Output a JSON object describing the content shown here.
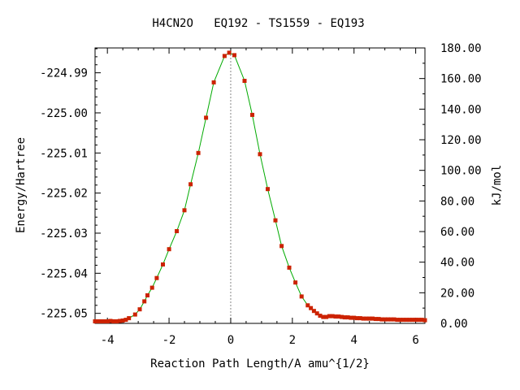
{
  "chart_data": {
    "type": "line",
    "title": "H4CN2O   EQ192 - TS1559 - EQ193",
    "xlabel": "Reaction Path Length/A amu^{1/2}",
    "ylabel": "Energy/Hartree",
    "y2label": "kJ/mol",
    "xlim": [
      -4.4,
      6.3
    ],
    "ylim": [
      -225.0525,
      -224.9838
    ],
    "y2lim": [
      0.0,
      180.0
    ],
    "x_ticks": [
      -4,
      -2,
      0,
      2,
      4,
      6
    ],
    "x_tick_labels": [
      "-4",
      "-2",
      "0",
      "2",
      "4",
      "6"
    ],
    "y_ticks": [
      -224.99,
      -225.0,
      -225.01,
      -225.02,
      -225.03,
      -225.04,
      -225.05
    ],
    "y_tick_labels": [
      "-224.99",
      "-225.00",
      "-225.01",
      "-225.02",
      "-225.03",
      "-225.04",
      "-225.05"
    ],
    "y2_ticks": [
      0,
      20,
      40,
      60,
      80,
      100,
      120,
      140,
      160,
      180
    ],
    "y2_tick_labels": [
      "0.00",
      "20.00",
      "40.00",
      "60.00",
      "80.00",
      "100.00",
      "120.00",
      "140.00",
      "160.00",
      "180.00"
    ],
    "ts_x": 0.0,
    "grid": false,
    "line_color": "#00aa00",
    "marker_color": "#cc2200",
    "ts_line_color": "#888888",
    "series": [
      {
        "x": [
          -4.4,
          -4.3,
          -4.2,
          -4.1,
          -4.0,
          -3.9,
          -3.8,
          -3.7,
          -3.6,
          -3.5,
          -3.4,
          -3.3,
          -3.1,
          -2.95,
          -2.8,
          -2.7,
          -2.55,
          -2.4,
          -2.2,
          -2.0,
          -1.75,
          -1.5,
          -1.3,
          -1.05,
          -0.8,
          -0.55,
          -0.2,
          -0.05,
          0.12,
          0.45,
          0.7,
          0.95,
          1.2,
          1.45,
          1.65,
          1.9,
          2.1,
          2.3,
          2.5,
          2.6,
          2.7,
          2.8,
          2.9,
          3.0,
          3.1,
          3.2,
          3.3,
          3.4,
          3.5,
          3.6,
          3.7,
          3.8,
          3.9,
          4.0,
          4.1,
          4.2,
          4.3,
          4.4,
          4.5,
          4.6,
          4.7,
          4.8,
          4.9,
          5.0,
          5.1,
          5.2,
          5.3,
          5.4,
          5.5,
          5.6,
          5.7,
          5.8,
          5.9,
          6.0,
          6.1,
          6.2,
          6.3
        ],
        "y": [
          -225.052,
          -225.052,
          -225.052,
          -225.052,
          -225.052,
          -225.0519,
          -225.052,
          -225.052,
          -225.0519,
          -225.0518,
          -225.0516,
          -225.0512,
          -225.0503,
          -225.049,
          -225.047,
          -225.0455,
          -225.0436,
          -225.0412,
          -225.0378,
          -225.034,
          -225.0295,
          -225.0243,
          -225.0178,
          -225.01,
          -225.0012,
          -224.9924,
          -224.9858,
          -224.985,
          -224.9856,
          -224.992,
          -225.0005,
          -225.0103,
          -225.019,
          -225.0268,
          -225.0332,
          -225.0386,
          -225.0423,
          -225.0458,
          -225.048,
          -225.0487,
          -225.0494,
          -225.05,
          -225.0506,
          -225.0509,
          -225.0509,
          -225.0507,
          -225.0507,
          -225.0508,
          -225.0508,
          -225.0509,
          -225.051,
          -225.051,
          -225.0511,
          -225.0511,
          -225.0512,
          -225.0512,
          -225.0513,
          -225.0513,
          -225.0513,
          -225.0513,
          -225.0514,
          -225.0514,
          -225.0515,
          -225.0515,
          -225.0515,
          -225.0515,
          -225.0515,
          -225.0516,
          -225.0516,
          -225.0516,
          -225.0516,
          -225.0516,
          -225.0516,
          -225.0516,
          -225.0516,
          -225.0516,
          -225.0517
        ]
      }
    ]
  }
}
